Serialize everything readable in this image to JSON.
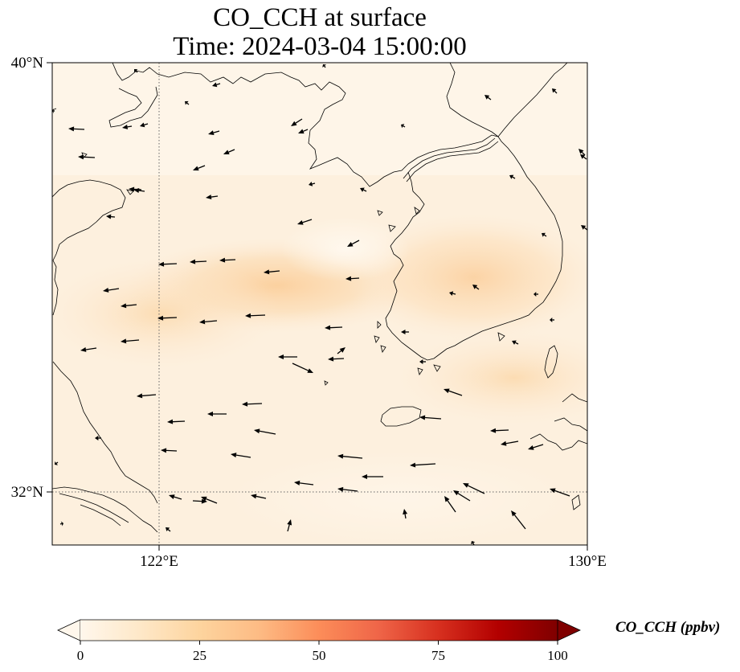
{
  "title": {
    "line1": "CO_CCH at surface",
    "line2": "Time: 2024-03-04 15:00:00"
  },
  "map": {
    "lon_range": [
      120,
      130
    ],
    "lat_range": [
      31,
      40
    ],
    "lat_ticks": [
      {
        "value": 40,
        "label": "40°N"
      },
      {
        "value": 32,
        "label": "32°N"
      }
    ],
    "lon_ticks": [
      {
        "value": 122,
        "label": "122°E"
      },
      {
        "value": 130,
        "label": "130°E"
      }
    ],
    "gridlines": {
      "lat": [
        32
      ],
      "lon": [
        122
      ]
    }
  },
  "colorbar": {
    "title": "CO_CCH (ppbv)",
    "range": [
      0,
      100
    ],
    "extend": "both",
    "ticks": [
      {
        "value": 0,
        "label": "0"
      },
      {
        "value": 25,
        "label": "25"
      },
      {
        "value": 50,
        "label": "50"
      },
      {
        "value": 75,
        "label": "75"
      },
      {
        "value": 100,
        "label": "100"
      }
    ],
    "colormap": "OrRd",
    "colors": [
      "#fff7ec",
      "#fee8c8",
      "#fdd49e",
      "#fdbb84",
      "#fc8d59",
      "#ef6548",
      "#d7301f",
      "#b30000",
      "#7f0000"
    ]
  },
  "colors": {
    "land_outline": "#000000",
    "grid": "#555555",
    "vector": "#000000"
  }
}
